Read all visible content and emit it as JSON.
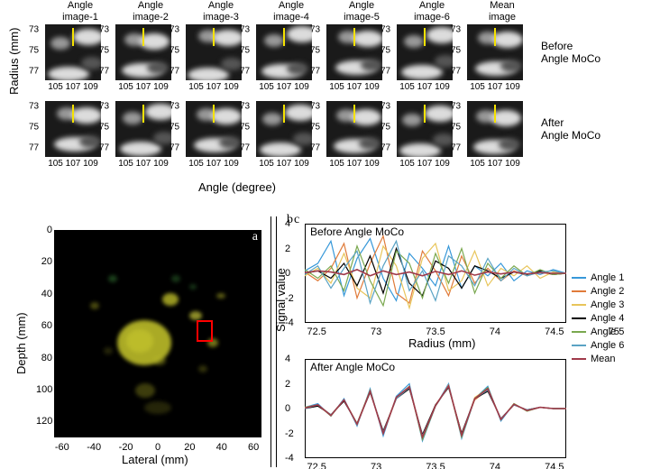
{
  "top": {
    "y_axis_label": "Radius (mm)",
    "x_axis_label": "Angle (degree)",
    "col_titles": [
      "Angle\nimage-1",
      "Angle\nimage-2",
      "Angle\nimage-3",
      "Angle\nimage-4",
      "Angle\nimage-5",
      "Angle\nimage-6",
      "Mean\nimage"
    ],
    "row_labels": [
      "Before\nAngle MoCo",
      "After\nAngle MoCo"
    ],
    "y_ticks": [
      "73",
      "75",
      "77"
    ],
    "x_ticks": [
      "105 107 109",
      "105 107 109",
      "105 107 109",
      "105 107 109",
      "105 107 109",
      "105 107 109",
      "105 107 109"
    ],
    "marker_color": "#f5e200",
    "blob_colors": {
      "dim": "#555555",
      "mid": "#999999",
      "bright": "#dcdcdc"
    },
    "background": "#1a1a1a"
  },
  "us": {
    "panel_letter": "a",
    "y_label": "Depth (mm)",
    "x_label": "Lateral (mm)",
    "y_ticks": [
      0,
      20,
      40,
      60,
      80,
      100,
      120
    ],
    "x_ticks": [
      -60,
      -40,
      -20,
      0,
      20,
      40,
      60
    ],
    "y_range": [
      0,
      130
    ],
    "x_range": [
      -65,
      65
    ],
    "roi_color": "#ff0000",
    "speckle_colors": [
      "#bdbd2a",
      "#7a7a1a",
      "#4a4a12",
      "#2e6b2e",
      "#c8c83a"
    ]
  },
  "charts": {
    "panel_letters": [
      "b",
      "c"
    ],
    "y_label": "Signal value",
    "x_label": "Radius (mm)",
    "titles": [
      "Before Angle MoCo",
      "After Angle MoCo"
    ],
    "x_range": [
      72.4,
      74.6
    ],
    "y_range": [
      -4,
      4
    ],
    "x_ticks_before": [
      72.5,
      73,
      73.5,
      74,
      74.5,
      75
    ],
    "x_ticks_after": [
      72.5,
      73,
      73.5,
      74,
      74.5
    ],
    "y_ticks": [
      -4,
      -2,
      0,
      2,
      4
    ],
    "colors": {
      "Angle 1": "#3798d9",
      "Angle 2": "#e07b3a",
      "Angle 3": "#e8c55a",
      "Angle 4": "#000000",
      "Angle 5": "#7aa84f",
      "Angle 6": "#5aa3c4",
      "Mean": "#a03a4a"
    },
    "legend_order": [
      "Angle 1",
      "Angle 2",
      "Angle 3",
      "Angle 4",
      "Angle 5",
      "Angle 6",
      "Mean"
    ],
    "series_before": {
      "Angle 1": [
        0.2,
        0.8,
        2.6,
        -1.8,
        1.2,
        2.8,
        -0.4,
        -2.2,
        1.6,
        0.4,
        -1.0,
        2.2,
        -1.2,
        0.6,
        -0.2,
        0.8,
        -0.6,
        0.2,
        -0.1,
        0.3,
        0.0
      ],
      "Angle 2": [
        0.1,
        -0.6,
        0.4,
        2.4,
        -2.0,
        0.8,
        3.0,
        -1.6,
        -2.4,
        1.8,
        0.2,
        -1.8,
        1.4,
        -0.8,
        0.4,
        -0.6,
        0.2,
        -0.2,
        0.1,
        -0.1,
        0.0
      ],
      "Angle 3": [
        -0.2,
        0.4,
        -0.8,
        1.6,
        -1.2,
        -2.0,
        2.2,
        0.6,
        -2.8,
        1.2,
        2.4,
        -1.4,
        -0.6,
        1.8,
        -1.0,
        0.4,
        -0.2,
        0.6,
        -0.4,
        0.1,
        0.0
      ],
      "Angle 4": [
        0.0,
        0.2,
        -0.4,
        0.8,
        -1.0,
        1.4,
        -1.6,
        2.0,
        -0.8,
        -1.8,
        1.0,
        0.4,
        -1.2,
        0.6,
        0.2,
        -0.4,
        0.1,
        -0.1,
        0.2,
        -0.1,
        0.0
      ],
      "Angle 5": [
        0.3,
        -0.4,
        0.6,
        -1.4,
        2.2,
        -0.6,
        -2.6,
        1.8,
        0.8,
        -2.0,
        1.6,
        -0.8,
        2.0,
        -1.6,
        0.8,
        -0.4,
        0.6,
        -0.2,
        0.3,
        -0.1,
        0.0
      ],
      "Angle 6": [
        -0.1,
        0.6,
        -1.2,
        0.4,
        1.8,
        -2.4,
        0.6,
        2.6,
        -1.4,
        0.2,
        -2.2,
        1.4,
        0.6,
        -1.0,
        1.2,
        -0.6,
        0.4,
        -0.2,
        0.1,
        0.2,
        0.0
      ],
      "Mean": [
        0.05,
        0.2,
        0.1,
        -0.1,
        0.3,
        -0.2,
        0.2,
        -0.1,
        0.1,
        -0.2,
        0.15,
        -0.1,
        0.2,
        -0.15,
        0.1,
        -0.05,
        0.1,
        -0.05,
        0.05,
        0.0,
        0.0
      ]
    },
    "series_after": {
      "Angle 1": [
        0.1,
        0.4,
        -0.6,
        0.8,
        -1.4,
        1.6,
        -2.2,
        1.0,
        2.0,
        -2.6,
        0.2,
        2.0,
        -2.4,
        0.8,
        1.8,
        -1.0,
        0.4,
        -0.2,
        0.1,
        0.0,
        0.0
      ],
      "Angle 2": [
        0.0,
        0.3,
        -0.5,
        0.7,
        -1.2,
        1.4,
        -2.0,
        0.8,
        1.8,
        -2.2,
        0.3,
        1.8,
        -2.0,
        0.7,
        1.5,
        -0.8,
        0.3,
        -0.1,
        0.1,
        0.0,
        0.0
      ],
      "Angle 3": [
        0.1,
        0.3,
        -0.5,
        0.7,
        -1.3,
        1.4,
        -1.9,
        0.9,
        1.7,
        -2.3,
        0.2,
        1.9,
        -2.2,
        0.9,
        1.6,
        -0.9,
        0.4,
        -0.2,
        0.1,
        0.0,
        0.0
      ],
      "Angle 4": [
        0.0,
        0.2,
        -0.5,
        0.6,
        -1.2,
        1.3,
        -1.8,
        0.8,
        1.6,
        -2.1,
        0.3,
        1.7,
        -2.0,
        0.8,
        1.4,
        -0.8,
        0.3,
        -0.1,
        0.1,
        0.0,
        0.0
      ],
      "Angle 5": [
        0.1,
        0.3,
        -0.6,
        0.7,
        -1.2,
        1.5,
        -2.0,
        0.9,
        1.8,
        -2.5,
        0.2,
        1.8,
        -2.3,
        0.8,
        1.7,
        -0.9,
        0.4,
        -0.2,
        0.1,
        0.0,
        0.0
      ],
      "Angle 6": [
        0.0,
        0.3,
        -0.5,
        0.7,
        -1.3,
        1.4,
        -1.9,
        0.8,
        1.7,
        -2.2,
        0.2,
        1.8,
        -2.1,
        0.8,
        1.5,
        -0.8,
        0.3,
        -0.1,
        0.1,
        0.0,
        0.0
      ],
      "Mean": [
        0.05,
        0.3,
        -0.55,
        0.7,
        -1.25,
        1.4,
        -2.0,
        0.9,
        1.75,
        -2.3,
        0.23,
        1.83,
        -2.15,
        0.8,
        1.6,
        -0.87,
        0.35,
        -0.15,
        0.1,
        0.0,
        0.0
      ]
    }
  }
}
